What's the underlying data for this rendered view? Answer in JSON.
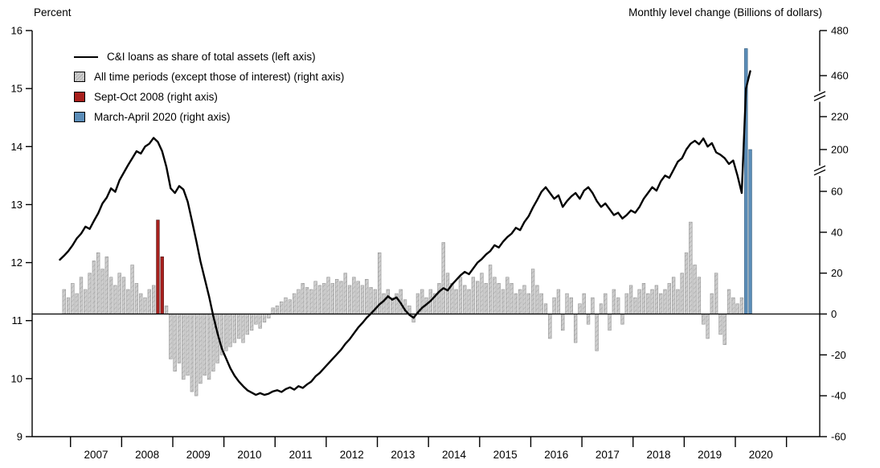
{
  "chart_data": {
    "type": "combo-line-bar-dual-axis",
    "left_axis": {
      "label": "Percent",
      "min": 9,
      "max": 16,
      "ticks": [
        9,
        10,
        11,
        12,
        13,
        14,
        15,
        16
      ]
    },
    "right_axis": {
      "label": "Monthly level change (Billions of dollars)",
      "ticks": [
        -60,
        -40,
        -20,
        0,
        20,
        40,
        60,
        200,
        220,
        460,
        480
      ],
      "anchors": [
        {
          "v": -60,
          "f": 1.0
        },
        {
          "v": 60,
          "f": 0.396
        },
        {
          "v": 200,
          "f": 0.293
        },
        {
          "v": 220,
          "f": 0.212
        },
        {
          "v": 460,
          "f": 0.111
        },
        {
          "v": 480,
          "f": 0.0
        }
      ],
      "break_fracs": [
        0.1615,
        0.3445
      ]
    },
    "x_axis": {
      "min": 2006.25,
      "max": 2021.65,
      "tick_years": [
        2007,
        2008,
        2009,
        2010,
        2011,
        2012,
        2013,
        2014,
        2015,
        2016,
        2017,
        2018,
        2019,
        2020,
        2021
      ],
      "label_years": [
        2007,
        2008,
        2009,
        2010,
        2011,
        2012,
        2013,
        2014,
        2015,
        2016,
        2017,
        2018,
        2019,
        2020
      ]
    },
    "legend": [
      {
        "swatch": "line",
        "label": "C&I loans as share of total assets (left axis)",
        "color": "#000000"
      },
      {
        "swatch": "box",
        "label": "All time periods (except those of interest) (right axis)",
        "color": "#cdcdcd",
        "hatch": true,
        "hatch_color": "#ababab"
      },
      {
        "swatch": "box",
        "label": "Sept-Oct 2008 (right axis)",
        "color": "#a8201d"
      },
      {
        "swatch": "box",
        "label": "March-April 2020 (right axis)",
        "color": "#5b8db8"
      }
    ],
    "line_series": {
      "name": "C&I loans as share of total assets",
      "axis": "left",
      "start": "2006-10",
      "values": [
        12.05,
        12.12,
        12.2,
        12.3,
        12.42,
        12.5,
        12.62,
        12.58,
        12.72,
        12.85,
        13.02,
        13.12,
        13.28,
        13.22,
        13.42,
        13.55,
        13.68,
        13.8,
        13.92,
        13.88,
        14.0,
        14.05,
        14.15,
        14.08,
        13.92,
        13.65,
        13.28,
        13.2,
        13.32,
        13.26,
        13.05,
        12.72,
        12.38,
        12.02,
        11.72,
        11.42,
        11.08,
        10.78,
        10.52,
        10.35,
        10.18,
        10.05,
        9.95,
        9.87,
        9.8,
        9.76,
        9.72,
        9.75,
        9.72,
        9.74,
        9.78,
        9.8,
        9.77,
        9.82,
        9.85,
        9.81,
        9.87,
        9.84,
        9.9,
        9.95,
        10.04,
        10.1,
        10.18,
        10.26,
        10.34,
        10.42,
        10.5,
        10.6,
        10.68,
        10.78,
        10.88,
        10.96,
        11.05,
        11.12,
        11.2,
        11.28,
        11.34,
        11.42,
        11.36,
        11.4,
        11.3,
        11.18,
        11.1,
        11.05,
        11.14,
        11.22,
        11.28,
        11.34,
        11.42,
        11.5,
        11.56,
        11.52,
        11.62,
        11.7,
        11.78,
        11.84,
        11.8,
        11.9,
        12.0,
        12.06,
        12.14,
        12.2,
        12.3,
        12.26,
        12.36,
        12.44,
        12.5,
        12.6,
        12.56,
        12.7,
        12.8,
        12.95,
        13.08,
        13.22,
        13.3,
        13.2,
        13.1,
        13.16,
        12.96,
        13.06,
        13.14,
        13.2,
        13.1,
        13.24,
        13.3,
        13.2,
        13.06,
        12.96,
        13.02,
        12.92,
        12.82,
        12.86,
        12.76,
        12.82,
        12.9,
        12.86,
        12.96,
        13.1,
        13.2,
        13.3,
        13.24,
        13.4,
        13.5,
        13.46,
        13.6,
        13.74,
        13.8,
        13.95,
        14.05,
        14.1,
        14.04,
        14.14,
        14.0,
        14.06,
        13.9,
        13.86,
        13.8,
        13.7,
        13.76,
        13.5,
        13.2,
        15.0,
        15.3
      ]
    },
    "bar_series": {
      "name": "Monthly level change",
      "axis": "right",
      "start": "2006-11",
      "values": [
        12,
        8,
        15,
        10,
        18,
        12,
        20,
        26,
        30,
        22,
        28,
        18,
        14,
        20,
        18,
        12,
        24,
        15,
        10,
        8,
        12,
        14,
        46,
        28,
        4,
        -22,
        -28,
        -24,
        -32,
        -30,
        -38,
        -40,
        -34,
        -30,
        -32,
        -28,
        -24,
        -20,
        -18,
        -16,
        -14,
        -12,
        -14,
        -10,
        -8,
        -5,
        -7,
        -4,
        -2,
        3,
        4,
        6,
        8,
        7,
        10,
        12,
        15,
        13,
        12,
        16,
        14,
        15,
        18,
        15,
        17,
        16,
        20,
        14,
        18,
        16,
        14,
        17,
        13,
        12,
        30,
        10,
        12,
        8,
        10,
        12,
        7,
        4,
        -4,
        10,
        12,
        8,
        12,
        10,
        15,
        35,
        20,
        15,
        12,
        18,
        14,
        12,
        18,
        16,
        20,
        15,
        24,
        18,
        15,
        12,
        18,
        15,
        10,
        12,
        14,
        10,
        22,
        14,
        10,
        5,
        -12,
        8,
        12,
        -8,
        10,
        8,
        -14,
        5,
        10,
        -5,
        8,
        -18,
        5,
        10,
        -8,
        12,
        8,
        -5,
        10,
        14,
        8,
        12,
        15,
        10,
        12,
        14,
        10,
        12,
        15,
        18,
        12,
        20,
        30,
        45,
        24,
        18,
        -5,
        -12,
        10,
        20,
        -10,
        -15,
        12,
        8,
        5,
        8,
        472,
        200
      ],
      "highlight": {
        "red": [
          "2008-09",
          "2008-10"
        ],
        "blue": [
          "2020-03",
          "2020-04"
        ]
      }
    },
    "colors": {
      "line": "#000000",
      "bar_gray": "#cdcdcd",
      "bar_gray_hatch": "#ababab",
      "bar_gray_stroke": "#8a8a8a",
      "bar_red": "#a8201d",
      "bar_red_stroke": "#3a0c0e",
      "bar_blue": "#5b8db8",
      "bar_blue_stroke": "#27506f",
      "axis": "#000000"
    }
  }
}
